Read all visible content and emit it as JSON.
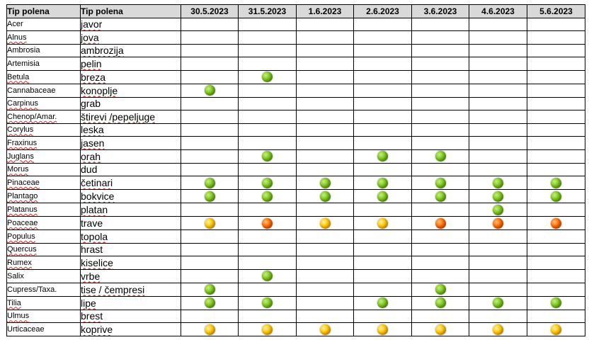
{
  "headers": {
    "col1": "Tip polena",
    "col2": "Tip polena"
  },
  "dates": [
    "30.5.2023",
    "31.5.2023",
    "1.6.2023",
    "2.6.2023",
    "3.6.2023",
    "4.6.2023",
    "5.6.2023"
  ],
  "colors": {
    "green": "#7cc21e",
    "yellow": "#ffc400",
    "orange": "#ff6a00"
  },
  "rows": [
    {
      "latin": "Acer",
      "local": "javor",
      "levels": [
        "",
        "",
        "",
        "",
        "",
        "",
        ""
      ]
    },
    {
      "latin": "Alnus",
      "local": "jova",
      "levels": [
        "",
        "",
        "",
        "",
        "",
        "",
        ""
      ]
    },
    {
      "latin": "Ambrosia",
      "local": "ambrozija",
      "levels": [
        "",
        "",
        "",
        "",
        "",
        "",
        ""
      ]
    },
    {
      "latin": "Artemisia",
      "local": "pelin",
      "levels": [
        "",
        "",
        "",
        "",
        "",
        "",
        ""
      ]
    },
    {
      "latin": "Betula",
      "local": "breza",
      "levels": [
        "",
        "green",
        "",
        "",
        "",
        "",
        ""
      ]
    },
    {
      "latin": "Cannabaceae",
      "local": "konoplje",
      "levels": [
        "green",
        "",
        "",
        "",
        "",
        "",
        ""
      ]
    },
    {
      "latin": "Carpinus",
      "local": "grab",
      "levels": [
        "",
        "",
        "",
        "",
        "",
        "",
        ""
      ]
    },
    {
      "latin": "Chenop/Amar.",
      "local": "štirevi /pepeljuge",
      "levels": [
        "",
        "",
        "",
        "",
        "",
        "",
        ""
      ]
    },
    {
      "latin": "Corylus",
      "local": "leska",
      "levels": [
        "",
        "",
        "",
        "",
        "",
        "",
        ""
      ]
    },
    {
      "latin": "Fraxinus",
      "local": "jasen",
      "levels": [
        "",
        "",
        "",
        "",
        "",
        "",
        ""
      ]
    },
    {
      "latin": "Juglans",
      "local": "orah",
      "levels": [
        "",
        "green",
        "",
        "green",
        "green",
        "",
        ""
      ]
    },
    {
      "latin": "Morus",
      "local": "dud",
      "levels": [
        "",
        "",
        "",
        "",
        "",
        "",
        ""
      ]
    },
    {
      "latin": "Pinaceae",
      "local": "četinari",
      "levels": [
        "green",
        "green",
        "green",
        "green",
        "green",
        "green",
        "green"
      ]
    },
    {
      "latin": "Plantago",
      "local": "bokvice",
      "levels": [
        "green",
        "green",
        "green",
        "green",
        "green",
        "green",
        "green"
      ]
    },
    {
      "latin": "Platanus",
      "local": "platan",
      "levels": [
        "",
        "",
        "",
        "",
        "",
        "green",
        ""
      ]
    },
    {
      "latin": "Poaceae",
      "local": "trave",
      "levels": [
        "yellow",
        "orange",
        "yellow",
        "yellow",
        "orange",
        "orange",
        "orange"
      ]
    },
    {
      "latin": "Populus",
      "local": "topola",
      "levels": [
        "",
        "",
        "",
        "",
        "",
        "",
        ""
      ]
    },
    {
      "latin": "Quercus",
      "local": "hrast",
      "levels": [
        "",
        "",
        "",
        "",
        "",
        "",
        ""
      ]
    },
    {
      "latin": "Rumex",
      "local": "kiselice",
      "levels": [
        "",
        "",
        "",
        "",
        "",
        "",
        ""
      ]
    },
    {
      "latin": "Salix",
      "local": "vrbe",
      "levels": [
        "",
        "green",
        "",
        "",
        "",
        "",
        ""
      ]
    },
    {
      "latin": "Cupress/Taxa.",
      "local": "tise / čempresi",
      "levels": [
        "green",
        "",
        "",
        "",
        "green",
        "",
        ""
      ]
    },
    {
      "latin": "Tilia",
      "local": "lipe",
      "levels": [
        "green",
        "green",
        "",
        "green",
        "green",
        "green",
        "green"
      ]
    },
    {
      "latin": "Ulmus",
      "local": "brest",
      "levels": [
        "",
        "",
        "",
        "",
        "",
        "",
        ""
      ]
    },
    {
      "latin": "Urticaceae",
      "local": "koprive",
      "levels": [
        "yellow",
        "yellow",
        "yellow",
        "yellow",
        "yellow",
        "yellow",
        "yellow"
      ]
    }
  ]
}
